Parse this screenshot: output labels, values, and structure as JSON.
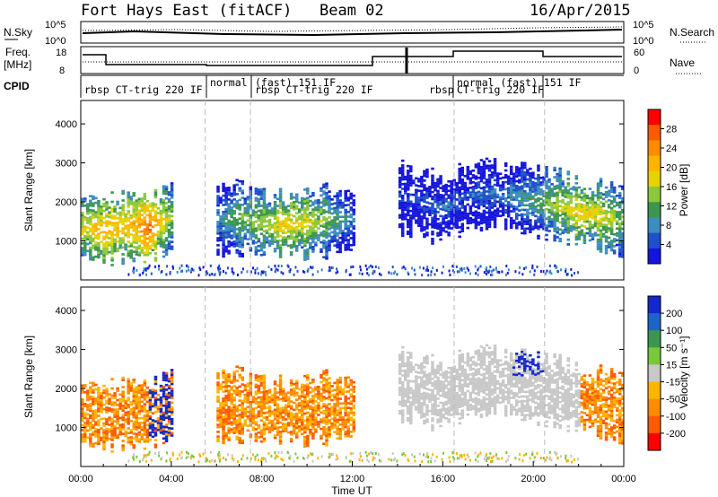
{
  "header": {
    "station": "Fort Hays East (fitACF)",
    "beam": "Beam 02",
    "date": "16/Apr/2015"
  },
  "nsky_panel": {
    "left_label": "N.Sky",
    "right_label": "N.Search",
    "left_ticks": [
      "10^5",
      "10^0"
    ],
    "right_ticks": [
      "10^5",
      "10^0"
    ]
  },
  "freq_panel": {
    "left_label_1": "Freq.",
    "left_label_2": "[MHz]",
    "right_label": "Nave",
    "left_ticks": [
      "18",
      "8"
    ],
    "right_ticks": [
      "60",
      "0"
    ]
  },
  "cpid": {
    "label": "CPID",
    "segments": [
      "rbsp  CT-trig 220 IF",
      "normal",
      "(fast) 151 IF",
      "rbsp  CT-trig 220 IF",
      "rbsp",
      "normal (fast) 151 IF",
      "CT-trig 220 IF"
    ]
  },
  "power_panel": {
    "ylabel": "Slant Range [km]",
    "yticks": [
      "4000",
      "3000",
      "2000",
      "1000"
    ],
    "colorbar_label": "Power [dB]",
    "colorbar_ticks": [
      "28",
      "24",
      "20",
      "16",
      "12",
      "8",
      "4"
    ],
    "colors": [
      "#ff0000",
      "#ff5a00",
      "#ff8c00",
      "#ffb400",
      "#e6d200",
      "#8cc83c",
      "#3c9650",
      "#3c8cbe",
      "#1e50c8",
      "#1414dc"
    ]
  },
  "velocity_panel": {
    "ylabel": "Slant Range [km]",
    "yticks": [
      "4000",
      "3000",
      "2000",
      "1000"
    ],
    "colorbar_label": "Velocity [m s⁻¹]",
    "colorbar_ticks": [
      "200",
      "100",
      "50",
      "15",
      "-15",
      "-50",
      "-100",
      "-200"
    ],
    "colors": [
      "#1428c8",
      "#1e64c8",
      "#3c9650",
      "#78c83c",
      "#c8c8c8",
      "#ffb400",
      "#ff8c00",
      "#ff5a00",
      "#ff0000"
    ]
  },
  "xaxis": {
    "label": "Time UT",
    "ticks": [
      "00:00",
      "04:00",
      "08:00",
      "12:00",
      "16:00",
      "20:00",
      "00:00"
    ]
  },
  "chart_data": {
    "type": "heatmap",
    "x_range_hours": [
      0,
      24
    ],
    "y_range_km": [
      0,
      4600
    ],
    "echo_band": {
      "time_ut": [
        "00:00",
        "01:00",
        "02:00",
        "03:00",
        "04:00",
        "05:00",
        "06:00",
        "07:00",
        "08:00",
        "09:00",
        "10:00",
        "11:00",
        "12:00",
        "13:00",
        "14:00",
        "15:00",
        "16:00",
        "17:00",
        "18:00",
        "19:00",
        "20:00",
        "21:00",
        "22:00",
        "23:00",
        "24:00"
      ],
      "center_range_km": [
        1350,
        1250,
        1350,
        1300,
        1600,
        null,
        1500,
        1550,
        1450,
        1400,
        1450,
        1500,
        1500,
        null,
        2100,
        1950,
        1800,
        2100,
        2200,
        2100,
        2000,
        1900,
        1700,
        1600,
        1450
      ],
      "power_db": [
        18,
        22,
        20,
        26,
        14,
        null,
        10,
        14,
        16,
        20,
        18,
        14,
        8,
        null,
        6,
        6,
        8,
        6,
        8,
        10,
        12,
        16,
        20,
        18,
        14
      ]
    }
  }
}
